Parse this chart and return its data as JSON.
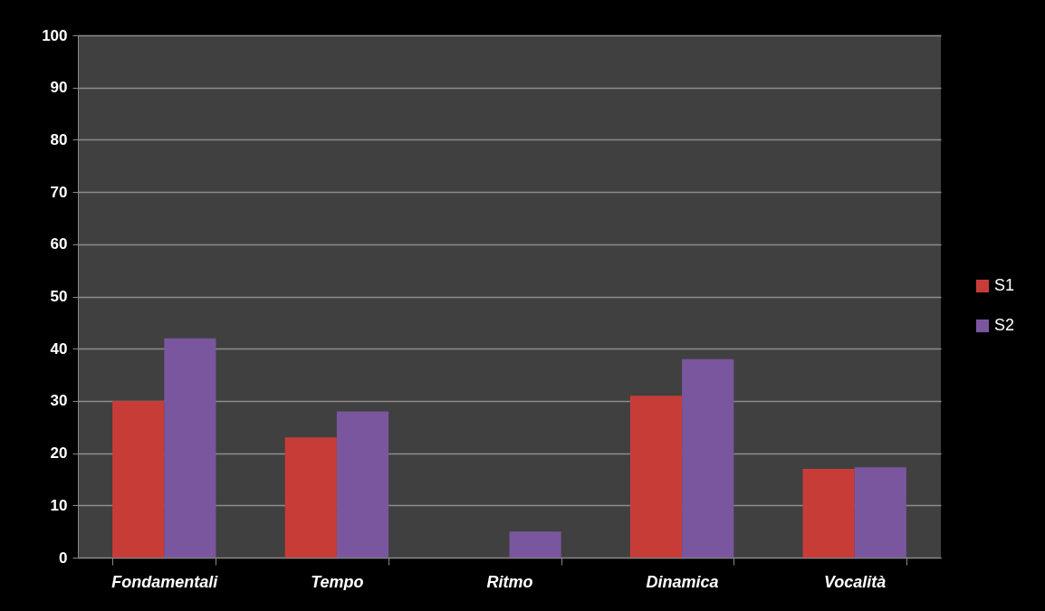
{
  "chart_data": {
    "type": "bar",
    "categories": [
      "Fondamentali",
      "Tempo",
      "Ritmo",
      "Dinamica",
      "Vocalità"
    ],
    "series": [
      {
        "name": "S1",
        "color": "#c83c38",
        "values": [
          30,
          23,
          null,
          31,
          17
        ]
      },
      {
        "name": "S2",
        "color": "#7a569e",
        "values": [
          42,
          28,
          5,
          38,
          17.3
        ]
      }
    ],
    "ylim": [
      0,
      100
    ],
    "yticks": [
      0,
      10,
      20,
      30,
      40,
      50,
      60,
      70,
      80,
      90,
      100
    ],
    "grid": "y",
    "legend": "right"
  }
}
